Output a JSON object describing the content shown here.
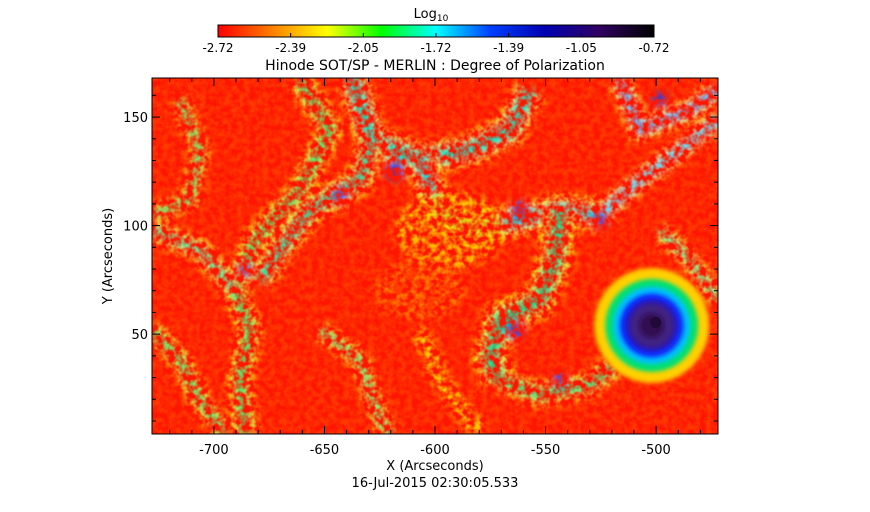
{
  "chart_data": {
    "type": "heatmap",
    "title": "Hinode SOT/SP - MERLIN : Degree of Polarization",
    "xlabel": "X (Arcseconds)",
    "ylabel": "Y (Arcseconds)",
    "footer": "16-Jul-2015 02:30:05.533",
    "xlim": [
      -728,
      -472
    ],
    "ylim": [
      4,
      168
    ],
    "x_ticks": [
      -700,
      -650,
      -600,
      -550,
      -500
    ],
    "x_tick_labels": [
      "-700",
      "-650",
      "-600",
      "-550",
      "-500"
    ],
    "y_ticks": [
      50,
      100,
      150
    ],
    "y_tick_labels": [
      "50",
      "100",
      "150"
    ],
    "colorbar": {
      "label_base": "Log",
      "label_sub": "10",
      "min": -2.72,
      "max": -0.72,
      "tick_labels": [
        "-2.72",
        "-2.39",
        "-2.05",
        "-1.72",
        "-1.39",
        "-1.05",
        "-0.72"
      ],
      "colors": [
        "#ff0000",
        "#ff8000",
        "#ffff00",
        "#00ff00",
        "#00ffff",
        "#0040ff",
        "#0000b0",
        "#300060",
        "#000000"
      ]
    },
    "features": [
      {
        "name": "sunspot",
        "x": -502,
        "y": 54,
        "radius_arcsec": 10,
        "value": -0.8
      }
    ]
  }
}
